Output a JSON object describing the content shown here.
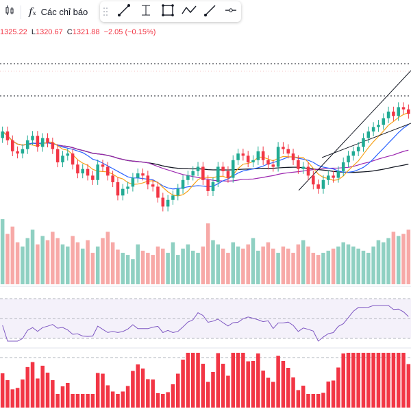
{
  "toolbar": {
    "candle_icon": "candlestick-icon",
    "indicators_icon": "fx-icon",
    "indicators_label": "Các chỉ báo",
    "drawing_tools": [
      "trend-line-icon",
      "vertical-line-icon",
      "rectangle-icon",
      "path-icon",
      "ray-icon",
      "horizontal-ray-icon"
    ]
  },
  "ohlc": {
    "open_value": "1325.22",
    "low_label": "L",
    "low_value": "1320.67",
    "close_label": "C",
    "close_value": "1321.88",
    "change": "−2.05 (−0.15%)"
  },
  "colors": {
    "up": "#22ab94",
    "down": "#f23645",
    "volume_up": "#8fd0c2",
    "volume_down": "#f7a9a7",
    "ema_short": "#f7a21b",
    "ema_mid": "#2962ff",
    "ema_long": "#9c27b0",
    "sma_long": "#131722",
    "rsi": "#7e57c2",
    "histogram": "#f23645"
  },
  "chart_data": {
    "type": "candlestick",
    "series": [
      {
        "name": "price",
        "o": [
          1302,
          1305,
          1301,
          1296,
          1295,
          1297,
          1301,
          1303,
          1298,
          1302,
          1300,
          1297,
          1291,
          1294,
          1295,
          1290,
          1286,
          1288,
          1285,
          1283,
          1290,
          1289,
          1285,
          1282,
          1276,
          1279,
          1280,
          1284,
          1286,
          1285,
          1281,
          1280,
          1275,
          1271,
          1274,
          1276,
          1279,
          1283,
          1285,
          1287,
          1289,
          1283,
          1278,
          1282,
          1289,
          1287,
          1284,
          1292,
          1295,
          1294,
          1291,
          1292,
          1296,
          1292,
          1290,
          1289,
          1298,
          1297,
          1295,
          1292,
          1288,
          1289,
          1285,
          1281,
          1279,
          1283,
          1285,
          1284,
          1287,
          1291,
          1294,
          1296,
          1298,
          1302,
          1305,
          1307,
          1308,
          1311,
          1314,
          1312,
          1316,
          1315
        ],
        "c": [
          1305,
          1301,
          1296,
          1295,
          1297,
          1301,
          1303,
          1298,
          1302,
          1300,
          1297,
          1291,
          1294,
          1295,
          1290,
          1286,
          1288,
          1285,
          1283,
          1290,
          1289,
          1285,
          1282,
          1276,
          1279,
          1280,
          1284,
          1286,
          1285,
          1281,
          1280,
          1275,
          1271,
          1274,
          1276,
          1279,
          1283,
          1285,
          1287,
          1289,
          1283,
          1278,
          1282,
          1289,
          1287,
          1284,
          1292,
          1295,
          1294,
          1291,
          1292,
          1296,
          1292,
          1290,
          1289,
          1298,
          1297,
          1295,
          1292,
          1288,
          1289,
          1285,
          1281,
          1279,
          1283,
          1285,
          1284,
          1287,
          1291,
          1294,
          1296,
          1298,
          1302,
          1305,
          1307,
          1308,
          1311,
          1314,
          1312,
          1316,
          1315,
          1313
        ]
      }
    ],
    "volume": [
      62,
      48,
      55,
      40,
      36,
      44,
      52,
      38,
      46,
      42,
      50,
      44,
      38,
      36,
      46,
      40,
      34,
      42,
      30,
      36,
      44,
      50,
      40,
      33,
      30,
      28,
      24,
      38,
      32,
      30,
      28,
      36,
      34,
      30,
      40,
      28,
      34,
      38,
      32,
      30,
      36,
      58,
      42,
      38,
      34,
      30,
      40,
      36,
      34,
      38,
      44,
      32,
      36,
      40,
      34,
      30,
      36,
      34,
      30,
      38,
      42,
      36,
      30,
      28,
      30,
      32,
      34,
      36,
      40,
      38,
      36,
      34,
      32,
      30,
      36,
      42,
      40,
      44,
      50,
      46,
      48,
      52
    ],
    "rsi_range": [
      0,
      100
    ],
    "rsi_levels": [
      70,
      50,
      30
    ]
  }
}
